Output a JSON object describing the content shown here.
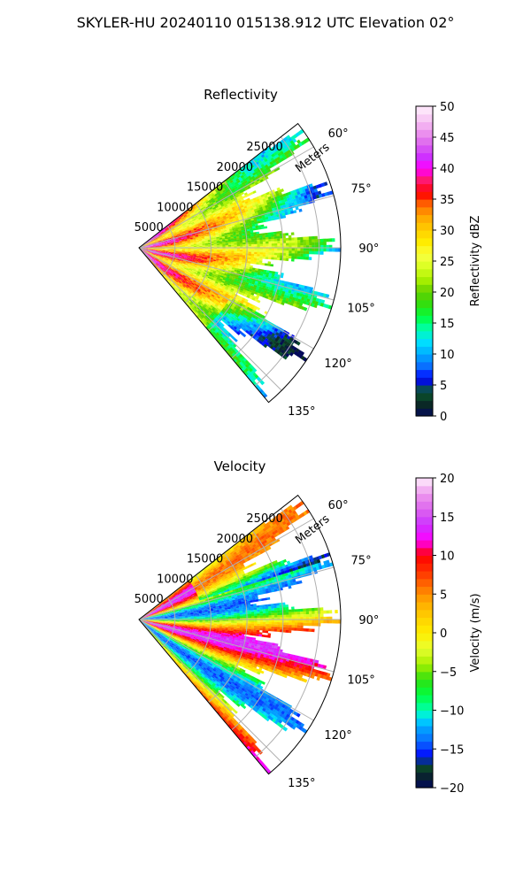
{
  "figure": {
    "title": "SKYLER-HU  20240110  015138.912 UTC Elevation 02°"
  },
  "colors": {
    "grid": "#b0b0b0",
    "frame": "#000000"
  },
  "chart_data": [
    {
      "type": "heatmap",
      "projection": "polar-sector",
      "title": "Reflectivity",
      "radial_label": "Meters",
      "radial_ticks": [
        "5000",
        "10000",
        "15000",
        "20000",
        "25000"
      ],
      "radial_tick_values": [
        5000,
        10000,
        15000,
        20000,
        25000
      ],
      "radial_range": [
        0,
        28000
      ],
      "angular_ticks": [
        "60°",
        "75°",
        "90°",
        "105°",
        "120°",
        "135°"
      ],
      "angular_tick_values": [
        60,
        75,
        90,
        105,
        120,
        135
      ],
      "azimuth_range": [
        52,
        140
      ],
      "grid": true,
      "colorbar": {
        "label": "Reflectivity dBZ",
        "range": [
          0,
          50
        ],
        "ticks": [
          "0",
          "5",
          "10",
          "15",
          "20",
          "25",
          "30",
          "35",
          "40",
          "45",
          "50"
        ],
        "tick_values": [
          0,
          5,
          10,
          15,
          20,
          25,
          30,
          35,
          40,
          45,
          50
        ],
        "stops": [
          {
            "v": 0,
            "c": "#02085a"
          },
          {
            "v": 2,
            "c": "#0b2a22"
          },
          {
            "v": 4,
            "c": "#0a5a30"
          },
          {
            "v": 6,
            "c": "#0000ff"
          },
          {
            "v": 8,
            "c": "#0a6cff"
          },
          {
            "v": 10,
            "c": "#00aaff"
          },
          {
            "v": 12,
            "c": "#00e0ff"
          },
          {
            "v": 14,
            "c": "#00ffb0"
          },
          {
            "v": 16,
            "c": "#00ff40"
          },
          {
            "v": 18,
            "c": "#30e010"
          },
          {
            "v": 20,
            "c": "#60d000"
          },
          {
            "v": 22,
            "c": "#a8f000"
          },
          {
            "v": 24,
            "c": "#d8ff20"
          },
          {
            "v": 26,
            "c": "#f8ff40"
          },
          {
            "v": 28,
            "c": "#ffee00"
          },
          {
            "v": 30,
            "c": "#ffd000"
          },
          {
            "v": 32,
            "c": "#ffaa00"
          },
          {
            "v": 34,
            "c": "#ff7000"
          },
          {
            "v": 36,
            "c": "#ff0000"
          },
          {
            "v": 38,
            "c": "#ff1a66"
          },
          {
            "v": 40,
            "c": "#ff00ff"
          },
          {
            "v": 42,
            "c": "#cc33ff"
          },
          {
            "v": 44,
            "c": "#dd66ee"
          },
          {
            "v": 46,
            "c": "#ee99ee"
          },
          {
            "v": 48,
            "c": "#f8c8f4"
          },
          {
            "v": 50,
            "c": "#fff0fc"
          }
        ]
      }
    },
    {
      "type": "heatmap",
      "projection": "polar-sector",
      "title": "Velocity",
      "radial_label": "Meters",
      "radial_ticks": [
        "5000",
        "10000",
        "15000",
        "20000",
        "25000"
      ],
      "radial_tick_values": [
        5000,
        10000,
        15000,
        20000,
        25000
      ],
      "radial_range": [
        0,
        28000
      ],
      "angular_ticks": [
        "60°",
        "75°",
        "90°",
        "105°",
        "120°",
        "135°"
      ],
      "angular_tick_values": [
        60,
        75,
        90,
        105,
        120,
        135
      ],
      "azimuth_range": [
        52,
        140
      ],
      "grid": true,
      "colorbar": {
        "label": "Velocity (m/s)",
        "range": [
          -20,
          20
        ],
        "ticks": [
          "−20",
          "−15",
          "−10",
          "−5",
          "0",
          "5",
          "10",
          "15",
          "20"
        ],
        "tick_values": [
          -20,
          -15,
          -10,
          -5,
          0,
          5,
          10,
          15,
          20
        ],
        "stops": [
          {
            "v": -20,
            "c": "#02085a"
          },
          {
            "v": -18,
            "c": "#0b2a22"
          },
          {
            "v": -17,
            "c": "#0a5a30"
          },
          {
            "v": -16,
            "c": "#0000ff"
          },
          {
            "v": -14,
            "c": "#0a6cff"
          },
          {
            "v": -12,
            "c": "#00aaff"
          },
          {
            "v": -11,
            "c": "#00e0ff"
          },
          {
            "v": -10,
            "c": "#00ffb0"
          },
          {
            "v": -8,
            "c": "#00ff40"
          },
          {
            "v": -6,
            "c": "#30e010"
          },
          {
            "v": -4,
            "c": "#a8f000"
          },
          {
            "v": -2,
            "c": "#e8ff30"
          },
          {
            "v": 0,
            "c": "#ffee00"
          },
          {
            "v": 2,
            "c": "#ffd000"
          },
          {
            "v": 4,
            "c": "#ffaa00"
          },
          {
            "v": 6,
            "c": "#ff7000"
          },
          {
            "v": 8,
            "c": "#ff3000"
          },
          {
            "v": 10,
            "c": "#ff0000"
          },
          {
            "v": 12,
            "c": "#ff00ff"
          },
          {
            "v": 14,
            "c": "#cc33ff"
          },
          {
            "v": 16,
            "c": "#dd66ee"
          },
          {
            "v": 18,
            "c": "#ee99ee"
          },
          {
            "v": 20,
            "c": "#fff0fc"
          }
        ]
      }
    }
  ]
}
